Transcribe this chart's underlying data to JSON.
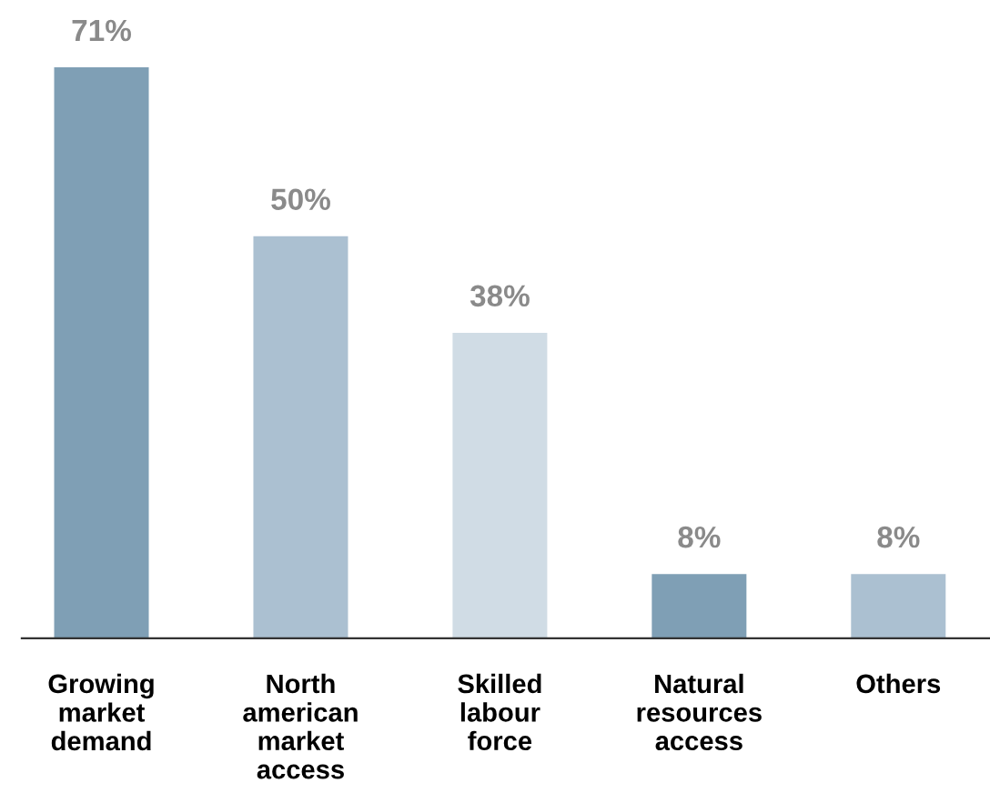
{
  "chart_data": {
    "type": "bar",
    "categories": [
      "Growing\nmarket\ndemand",
      "North\namerican\nmarket\naccess",
      "Skilled\nlabour\nforce",
      "Natural\nresources\naccess",
      "Others"
    ],
    "values": [
      71,
      50,
      38,
      8,
      8
    ],
    "value_labels": [
      "71%",
      "50%",
      "38%",
      "8%",
      "8%"
    ],
    "colors": [
      "#7f9fb5",
      "#abc0d1",
      "#d0dce5",
      "#7f9fb5",
      "#abc0d1"
    ],
    "grid": false,
    "legend": false
  }
}
